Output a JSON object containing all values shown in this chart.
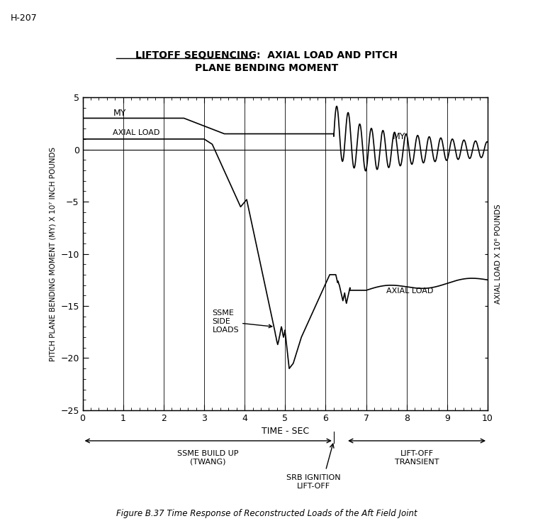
{
  "title_line1": "LIFTOFF SEQUENCING:  AXIAL LOAD AND PITCH",
  "title_line2": "PLANE BENDING MOMENT",
  "header_text": "H-207",
  "xlabel": "TIME - SEC",
  "ylabel_left": "PITCH PLANE BENDING MOMENT (MY) X 10⁷ INCH POUNDS",
  "ylabel_right": "AXIAL LOAD X 10⁶ POUNDS",
  "xlim": [
    0,
    10
  ],
  "ylim": [
    -25,
    5
  ],
  "yticks": [
    5,
    0,
    -5,
    -10,
    -15,
    -20,
    -25
  ],
  "xticks": [
    0,
    1,
    2,
    3,
    4,
    5,
    6,
    7,
    8,
    9,
    10
  ],
  "figcaption": "Figure B.37 Time Response of Reconstructed Loads of the Aft Field Joint",
  "background_color": "#ffffff",
  "grid_color": "#000000",
  "line_color": "#000000",
  "ssme_label": "SSME\nSIDE\nLOADS",
  "my_label_left": "MY",
  "axial_label_left": "AXIAL LOAD",
  "my_label_right": "MY",
  "axial_label_right": "AXIAL LOAD",
  "ssme_buildup_label": "SSME BUILD UP\n(TWANG)",
  "liftoff_transient_label": "LIFT-OFF\nTRANSIENT",
  "srb_label": "SRB IGNITION\nLIFT-OFF"
}
